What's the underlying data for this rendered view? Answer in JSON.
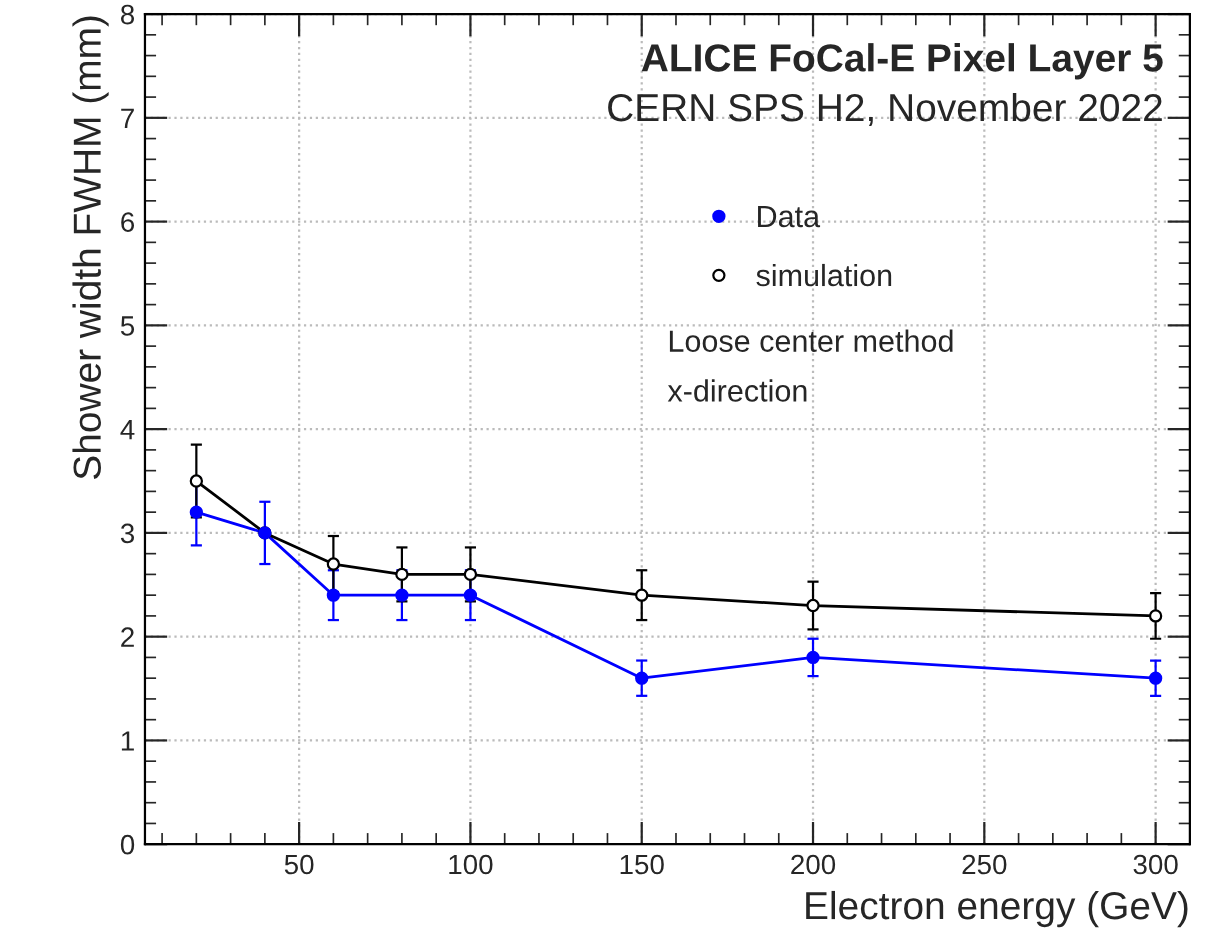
{
  "chart_data": {
    "type": "line",
    "title": "ALICE FoCal-E Pixel Layer 5",
    "subtitle": "CERN SPS H2, November 2022",
    "xlabel": "Electron energy (GeV)",
    "ylabel": "Shower width FWHM (mm)",
    "annotations": [
      "Loose center method",
      "x-direction"
    ],
    "x": [
      20,
      40,
      60,
      80,
      100,
      150,
      200,
      300
    ],
    "series": [
      {
        "name": "Data",
        "color": "#0000ff",
        "values": [
          3.2,
          3.0,
          2.4,
          2.4,
          2.4,
          1.6,
          1.8,
          1.6
        ],
        "errors": [
          0.32,
          0.3,
          0.24,
          0.24,
          0.24,
          0.17,
          0.18,
          0.17
        ]
      },
      {
        "name": "simulation",
        "color": "#000000",
        "values": [
          3.5,
          3.0,
          2.7,
          2.6,
          2.6,
          2.4,
          2.3,
          2.2
        ],
        "errors": [
          0.35,
          null,
          0.27,
          0.26,
          0.26,
          0.24,
          0.23,
          0.22
        ]
      }
    ],
    "xlim": [
      5,
      310
    ],
    "ylim": [
      0,
      8
    ],
    "xticks": [
      50,
      100,
      150,
      200,
      250,
      300
    ],
    "yticks": [
      0,
      1,
      2,
      3,
      4,
      5,
      6,
      7,
      8
    ],
    "grid": true,
    "legend": "top right",
    "marker": "circle",
    "line_style": "solid"
  }
}
